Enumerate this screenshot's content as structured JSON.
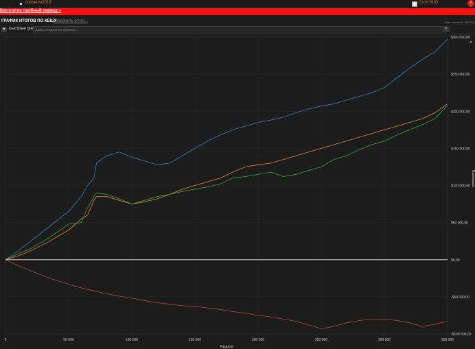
{
  "topbar": {
    "username": "conserva2015",
    "hud_label": "Стол HUD",
    "user_icon": "user-icon",
    "alert_icon": "alert-icon"
  },
  "trial": {
    "text": "Бесплатно пробный период »"
  },
  "header": {
    "title": "ГРАФИК ИТОГОВ ПО КЕШУ",
    "save_link": "Сохранить отчет...",
    "count_text": "Всего записей: 480 000"
  },
  "filter": {
    "label": "Быстрые фильт",
    "placeholder": "Здесь создаются фильтр...",
    "clear": "×"
  },
  "chart_data": {
    "type": "line",
    "title": "",
    "xlabel": "Раздачи",
    "ylabel": "Выигрыши",
    "xlim": [
      0,
      350000
    ],
    "ylim": [
      -100000,
      300000
    ],
    "x_ticks": [
      0,
      50000,
      100000,
      150000,
      200000,
      250000,
      300000,
      350000
    ],
    "x_tick_labels": [
      "0",
      "50 000",
      "100 000",
      "150 000",
      "200 000",
      "250 000",
      "300 000",
      "350 000"
    ],
    "y_ticks": [
      -100000,
      -50000,
      0,
      50000,
      100000,
      150000,
      200000,
      250000,
      300000
    ],
    "y_tick_labels": [
      "-$100 000,00",
      "-$50 000,00",
      "$0,00",
      "$50 000,00",
      "$100 000,00",
      "$150 000,00",
      "$200 000,00",
      "$250 000,00",
      "$300 000,00"
    ],
    "grid": true,
    "series": [
      {
        "color": "#3f7fc4",
        "x": [
          0,
          10000,
          20000,
          35000,
          50000,
          60000,
          65000,
          70000,
          72000,
          80000,
          90000,
          100000,
          110000,
          120000,
          130000,
          140000,
          150000,
          160000,
          170000,
          180000,
          190000,
          200000,
          210000,
          220000,
          230000,
          240000,
          250000,
          260000,
          270000,
          280000,
          290000,
          300000,
          310000,
          320000,
          330000,
          340000,
          350000
        ],
        "y": [
          0,
          12000,
          25000,
          45000,
          65000,
          85000,
          100000,
          110000,
          130000,
          140000,
          145000,
          138000,
          133000,
          128000,
          130000,
          140000,
          150000,
          160000,
          168000,
          175000,
          180000,
          185000,
          188000,
          192000,
          198000,
          203000,
          207000,
          210000,
          215000,
          220000,
          225000,
          232000,
          245000,
          258000,
          270000,
          280000,
          297000
        ]
      },
      {
        "color": "#e8883a",
        "x": [
          0,
          10000,
          20000,
          35000,
          50000,
          60000,
          65000,
          70000,
          72000,
          80000,
          90000,
          100000,
          110000,
          120000,
          130000,
          140000,
          150000,
          160000,
          170000,
          180000,
          190000,
          200000,
          210000,
          220000,
          230000,
          240000,
          250000,
          260000,
          270000,
          280000,
          290000,
          300000,
          310000,
          320000,
          330000,
          340000,
          350000
        ],
        "y": [
          0,
          5000,
          12000,
          25000,
          40000,
          55000,
          60000,
          80000,
          85000,
          85000,
          80000,
          75000,
          78000,
          82000,
          88000,
          95000,
          100000,
          105000,
          110000,
          118000,
          125000,
          128000,
          130000,
          135000,
          140000,
          145000,
          150000,
          155000,
          160000,
          165000,
          170000,
          175000,
          180000,
          185000,
          190000,
          198000,
          210000
        ]
      },
      {
        "color": "#3aa83a",
        "x": [
          0,
          10000,
          20000,
          35000,
          50000,
          60000,
          65000,
          70000,
          72000,
          80000,
          90000,
          100000,
          110000,
          120000,
          130000,
          140000,
          150000,
          160000,
          170000,
          180000,
          190000,
          200000,
          210000,
          220000,
          230000,
          240000,
          250000,
          260000,
          270000,
          280000,
          290000,
          300000,
          310000,
          320000,
          330000,
          340000,
          350000
        ],
        "y": [
          0,
          8000,
          15000,
          30000,
          48000,
          50000,
          70000,
          85000,
          90000,
          88000,
          82000,
          75000,
          80000,
          85000,
          88000,
          92000,
          95000,
          98000,
          102000,
          110000,
          112000,
          115000,
          118000,
          112000,
          115000,
          120000,
          125000,
          135000,
          140000,
          148000,
          155000,
          160000,
          168000,
          175000,
          182000,
          190000,
          208000
        ]
      },
      {
        "color": "#b84a4a",
        "x": [
          0,
          10000,
          20000,
          35000,
          50000,
          60000,
          70000,
          80000,
          90000,
          100000,
          110000,
          120000,
          130000,
          140000,
          150000,
          160000,
          170000,
          180000,
          190000,
          200000,
          210000,
          220000,
          230000,
          240000,
          250000,
          260000,
          270000,
          280000,
          290000,
          300000,
          310000,
          320000,
          330000,
          340000,
          350000
        ],
        "y": [
          0,
          -8000,
          -15000,
          -25000,
          -33000,
          -38000,
          -42000,
          -46000,
          -49000,
          -52000,
          -55000,
          -58000,
          -60000,
          -62000,
          -63000,
          -65000,
          -67000,
          -70000,
          -72000,
          -75000,
          -77000,
          -80000,
          -83000,
          -88000,
          -93000,
          -90000,
          -85000,
          -82000,
          -80000,
          -80000,
          -82000,
          -85000,
          -90000,
          -87000,
          -83000
        ]
      },
      {
        "color": "#e8e8e8",
        "x": [
          0,
          350000
        ],
        "y": [
          0,
          0
        ]
      }
    ]
  }
}
